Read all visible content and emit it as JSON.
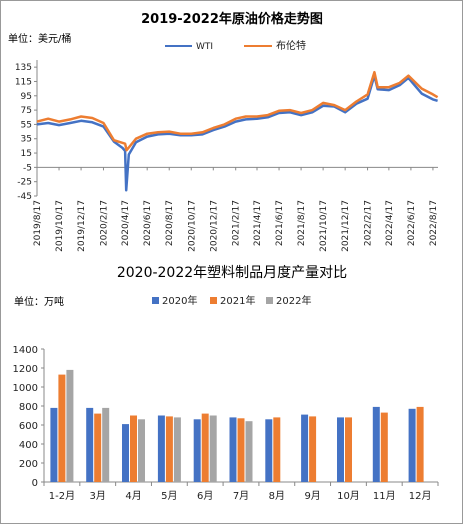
{
  "chart_data": [
    {
      "type": "line",
      "title": "2019-2022年原油价格走势图",
      "unit_label": "单位：美元/桶",
      "ylim": [
        -45,
        145
      ],
      "y_ticks": [
        135,
        115,
        95,
        75,
        55,
        35,
        15,
        -5,
        -25,
        -45
      ],
      "x_tick_labels": [
        "2019/8/17",
        "2019/10/17",
        "2019/12/17",
        "2020/2/17",
        "2020/4/17",
        "2020/6/17",
        "2020/8/17",
        "2020/10/17",
        "2020/12/17",
        "2021/2/17",
        "2021/4/17",
        "2021/6/17",
        "2021/8/17",
        "2021/10/17",
        "2021/12/17",
        "2022/2/17",
        "2022/4/17",
        "2022/6/17",
        "2022/8/17"
      ],
      "grid": false,
      "legend_position": "top-center",
      "series": [
        {
          "name": "WTI",
          "color": "#4472c4",
          "x": [
            "2019/8/17",
            "2019/9/17",
            "2019/10/17",
            "2019/11/17",
            "2019/12/17",
            "2020/1/17",
            "2020/2/17",
            "2020/3/17",
            "2020/4/10",
            "2020/4/17",
            "2020/4/20",
            "2020/4/27",
            "2020/5/17",
            "2020/6/17",
            "2020/7/17",
            "2020/8/17",
            "2020/9/17",
            "2020/10/17",
            "2020/11/17",
            "2020/12/17",
            "2021/1/17",
            "2021/2/17",
            "2021/3/17",
            "2021/4/17",
            "2021/5/17",
            "2021/6/17",
            "2021/7/17",
            "2021/8/17",
            "2021/9/17",
            "2021/10/17",
            "2021/11/17",
            "2021/12/17",
            "2022/1/17",
            "2022/2/17",
            "2022/3/8",
            "2022/3/17",
            "2022/4/17",
            "2022/5/17",
            "2022/6/10",
            "2022/7/17",
            "2022/8/17",
            "2022/8/30"
          ],
          "values": [
            55,
            57,
            54,
            57,
            60,
            58,
            52,
            31,
            22,
            18,
            -37,
            13,
            30,
            38,
            41,
            42,
            40,
            40,
            41,
            47,
            52,
            59,
            62,
            63,
            65,
            71,
            72,
            68,
            72,
            81,
            80,
            72,
            84,
            91,
            123,
            104,
            103,
            110,
            120,
            98,
            90,
            88
          ]
        },
        {
          "name": "布伦特",
          "color": "#ed7d31",
          "x": [
            "2019/8/17",
            "2019/9/17",
            "2019/10/17",
            "2019/11/17",
            "2019/12/17",
            "2020/1/17",
            "2020/2/17",
            "2020/3/17",
            "2020/4/17",
            "2020/4/21",
            "2020/5/17",
            "2020/6/17",
            "2020/7/17",
            "2020/8/17",
            "2020/9/17",
            "2020/10/17",
            "2020/11/17",
            "2020/12/17",
            "2021/1/17",
            "2021/2/17",
            "2021/3/17",
            "2021/4/17",
            "2021/5/17",
            "2021/6/17",
            "2021/7/17",
            "2021/8/17",
            "2021/9/17",
            "2021/10/17",
            "2021/11/17",
            "2021/12/17",
            "2022/1/17",
            "2022/2/17",
            "2022/3/8",
            "2022/3/17",
            "2022/4/17",
            "2022/5/17",
            "2022/6/10",
            "2022/7/17",
            "2022/8/17",
            "2022/8/30"
          ],
          "values": [
            59,
            63,
            59,
            62,
            66,
            64,
            57,
            33,
            28,
            19,
            35,
            42,
            44,
            45,
            42,
            42,
            44,
            50,
            55,
            63,
            66,
            66,
            68,
            74,
            75,
            71,
            75,
            85,
            82,
            75,
            87,
            97,
            128,
            107,
            107,
            113,
            123,
            105,
            97,
            93
          ]
        }
      ]
    },
    {
      "type": "bar",
      "title": "2020-2022年塑料制品月度产量对比",
      "unit_label": "单位：万吨",
      "categories": [
        "1-2月",
        "3月",
        "4月",
        "5月",
        "6月",
        "7月",
        "8月",
        "9月",
        "10月",
        "11月",
        "12月"
      ],
      "ylim": [
        0,
        1400
      ],
      "y_ticks": [
        1400,
        1200,
        1000,
        800,
        600,
        400,
        200,
        0
      ],
      "grid": false,
      "legend_position": "top-right",
      "series": [
        {
          "name": "2020年",
          "color": "#4472c4",
          "values": [
            780,
            780,
            610,
            700,
            660,
            680,
            660,
            710,
            680,
            790,
            770
          ]
        },
        {
          "name": "2021年",
          "color": "#ed7d31",
          "values": [
            1130,
            720,
            700,
            690,
            720,
            670,
            680,
            690,
            680,
            730,
            790
          ]
        },
        {
          "name": "2022年",
          "color": "#a5a5a5",
          "values": [
            1180,
            780,
            660,
            680,
            700,
            640,
            null,
            null,
            null,
            null,
            null
          ]
        }
      ]
    }
  ]
}
